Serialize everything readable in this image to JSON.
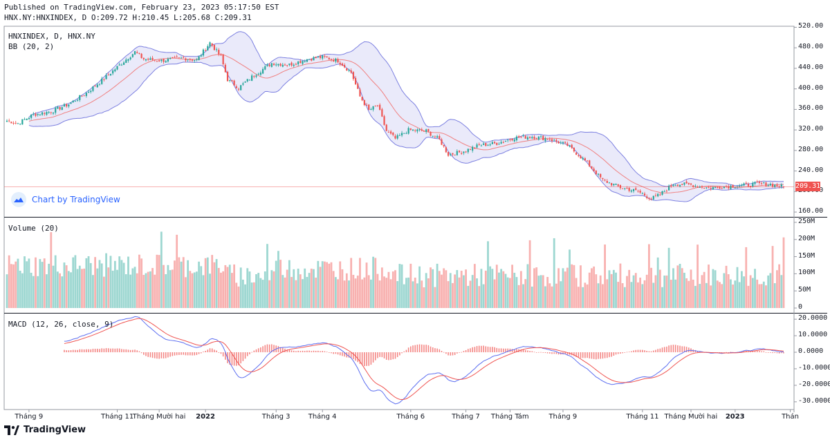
{
  "header": {
    "published": "Published on TradingView.com, February 23, 2023 05:17:50 EST",
    "ohlc": "HNX.NY:HNXINDEX, D O:209.72 H:210.45 L:205.68 C:209.31"
  },
  "panes": {
    "price": {
      "symbol_label": "HNXINDEX, D, HNX.NY",
      "indicator_label": "BB (20, 2)"
    },
    "volume": {
      "label": "Volume (20)"
    },
    "macd": {
      "label": "MACD (12, 26, close, 9)"
    }
  },
  "watermark": {
    "text": "Chart by TradingView"
  },
  "footer": {
    "brand": "TradingView"
  },
  "colors": {
    "up": "#26a69a",
    "down": "#ef5350",
    "band": "#7b7fe0",
    "basis": "#f07f7f",
    "macd": "#5b6df0",
    "signal": "#ef5350"
  },
  "chart_data": {
    "type": "candlestick",
    "title": "HNXINDEX, D, HNX.NY",
    "last_price": "209.31",
    "x_tick_labels": [
      "Tháng 9",
      "Tháng 11",
      "Tháng Mười hai",
      "2022",
      "Tháng 3",
      "Tháng 4",
      "Tháng 6",
      "Tháng 7",
      "Tháng Tám",
      "Tháng 9",
      "Tháng 11",
      "Tháng Mười hai",
      "2023",
      "Thán"
    ],
    "x_tick_index": [
      10,
      50,
      69,
      90,
      122,
      143,
      183,
      208,
      228,
      252,
      288,
      310,
      330,
      355
    ],
    "bold_ticks": [
      "2022",
      "2023"
    ],
    "price_axis": {
      "ylim": [
        152,
        522
      ],
      "ticks": [
        "520.00",
        "480.00",
        "440.00",
        "400.00",
        "360.00",
        "320.00",
        "280.00",
        "240.00",
        "200.00",
        "160.00"
      ]
    },
    "volume_axis": {
      "ylim": [
        0,
        262
      ],
      "ticks": [
        "250M",
        "200M",
        "150M",
        "100M",
        "50M",
        "0"
      ]
    },
    "macd_axis": {
      "ylim": [
        -33,
        23
      ],
      "ticks": [
        "20.0000",
        "10.0000",
        "0.0000",
        "-10.0000",
        "-20.0000",
        "-30.0000"
      ]
    },
    "close_anchors": [
      [
        0,
        338
      ],
      [
        5,
        333
      ],
      [
        12,
        350
      ],
      [
        20,
        356
      ],
      [
        28,
        370
      ],
      [
        36,
        392
      ],
      [
        44,
        420
      ],
      [
        52,
        450
      ],
      [
        58,
        472
      ],
      [
        62,
        458
      ],
      [
        70,
        455
      ],
      [
        80,
        460
      ],
      [
        86,
        456
      ],
      [
        92,
        490
      ],
      [
        97,
        462
      ],
      [
        100,
        418
      ],
      [
        105,
        402
      ],
      [
        112,
        427
      ],
      [
        120,
        450
      ],
      [
        128,
        447
      ],
      [
        136,
        458
      ],
      [
        143,
        462
      ],
      [
        150,
        455
      ],
      [
        156,
        432
      ],
      [
        160,
        385
      ],
      [
        164,
        358
      ],
      [
        168,
        368
      ],
      [
        172,
        318
      ],
      [
        176,
        303
      ],
      [
        182,
        320
      ],
      [
        190,
        318
      ],
      [
        196,
        301
      ],
      [
        200,
        272
      ],
      [
        206,
        277
      ],
      [
        214,
        290
      ],
      [
        222,
        294
      ],
      [
        230,
        305
      ],
      [
        238,
        307
      ],
      [
        246,
        302
      ],
      [
        254,
        290
      ],
      [
        262,
        260
      ],
      [
        270,
        222
      ],
      [
        278,
        208
      ],
      [
        286,
        200
      ],
      [
        292,
        186
      ],
      [
        296,
        194
      ],
      [
        302,
        215
      ],
      [
        310,
        213
      ],
      [
        318,
        207
      ],
      [
        326,
        210
      ],
      [
        334,
        212
      ],
      [
        340,
        215
      ],
      [
        346,
        214
      ],
      [
        350,
        211
      ],
      [
        352,
        209.31
      ]
    ],
    "series_summary": {
      "open": 209.72,
      "high": 210.45,
      "low": 205.68,
      "close": 209.31
    }
  }
}
